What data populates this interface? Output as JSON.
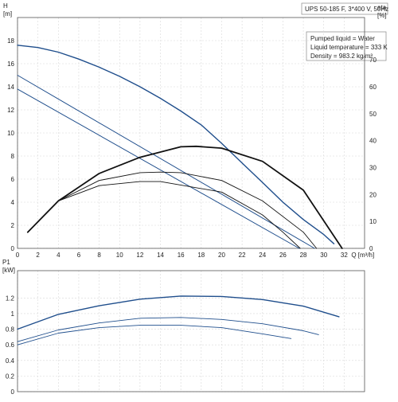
{
  "header": {
    "title": "UPS 50-185 F, 3*400 V, 50Hz",
    "info_lines": [
      "Pumped liquid = Water",
      "Liquid temperature = 333 K",
      "Density = 983.2 kg/m³"
    ]
  },
  "colors": {
    "blue": "#1f4e8c",
    "black": "#111111",
    "grid": "#d8d8d8"
  },
  "chart_data": [
    {
      "type": "line",
      "title": "",
      "xlabel": "Q [m³/h]",
      "ylabel": "H\n[m]",
      "y2label": "eta\n[%]",
      "xlim": [
        0,
        34
      ],
      "ylim": [
        0,
        20
      ],
      "y2lim": [
        0,
        85.7
      ],
      "xticks": [
        0,
        2,
        4,
        6,
        8,
        10,
        12,
        14,
        16,
        18,
        20,
        22,
        24,
        26,
        28,
        30,
        32
      ],
      "yticks": [
        0,
        2,
        4,
        6,
        8,
        10,
        12,
        14,
        16,
        18
      ],
      "y2ticks": [
        0,
        10,
        20,
        30,
        40,
        50,
        60,
        70
      ],
      "grid": true,
      "series": [
        {
          "color": "#1f4e8c",
          "width": 1.4,
          "axis": "y",
          "x": [
            0,
            2,
            4,
            6,
            8,
            10,
            12,
            14,
            16,
            18,
            20,
            22,
            24,
            26,
            28,
            30,
            31
          ],
          "y": [
            17.6,
            17.4,
            17.0,
            16.4,
            15.7,
            14.9,
            14.0,
            13.0,
            11.9,
            10.7,
            9.1,
            7.4,
            5.7,
            4.0,
            2.5,
            1.2,
            0.4
          ]
        },
        {
          "color": "#1f4e8c",
          "width": 1.0,
          "axis": "y",
          "x": [
            0,
            29.1
          ],
          "y": [
            15.0,
            0
          ]
        },
        {
          "color": "#1f4e8c",
          "width": 1.0,
          "axis": "y",
          "x": [
            0,
            27.6
          ],
          "y": [
            13.8,
            0
          ]
        },
        {
          "color": "#111111",
          "width": 1.8,
          "axis": "y2",
          "x": [
            1,
            4,
            8,
            12,
            16,
            17.5,
            20,
            24,
            28,
            31.8
          ],
          "y": [
            6,
            17.6,
            27.8,
            33.8,
            37.7,
            37.9,
            37.2,
            32.3,
            21.6,
            0
          ]
        },
        {
          "color": "#111111",
          "width": 0.9,
          "axis": "y2",
          "x": [
            1,
            4,
            8,
            12,
            14,
            16,
            20,
            24,
            28,
            29.3
          ],
          "y": [
            6,
            17.6,
            25.2,
            28.1,
            28.3,
            28.1,
            25.2,
            17.6,
            6,
            0
          ]
        },
        {
          "color": "#111111",
          "width": 0.9,
          "axis": "y2",
          "x": [
            1,
            4,
            8,
            12,
            14,
            20,
            24,
            26,
            27.7
          ],
          "y": [
            6,
            17.6,
            23.3,
            24.8,
            24.8,
            20.9,
            12.4,
            6,
            0
          ]
        }
      ]
    },
    {
      "type": "line",
      "title": "",
      "xlabel": "",
      "ylabel": "P1\n[kW]",
      "xlim": [
        0,
        34
      ],
      "ylim": [
        0,
        1.55
      ],
      "yticks": [
        0,
        0.2,
        0.4,
        0.6,
        0.8,
        1.0,
        1.2
      ],
      "ytick_labels": [
        "0",
        "0.2",
        "0.4",
        "0.6",
        "0.8",
        "1",
        "1.2"
      ],
      "grid": true,
      "series": [
        {
          "color": "#1f4e8c",
          "width": 1.4,
          "x": [
            0,
            4,
            8,
            12,
            16,
            20,
            24,
            28,
            31.5
          ],
          "y": [
            0.8,
            0.99,
            1.1,
            1.185,
            1.225,
            1.22,
            1.18,
            1.095,
            0.96
          ]
        },
        {
          "color": "#1f4e8c",
          "width": 0.9,
          "x": [
            0,
            4,
            8,
            12,
            16,
            20,
            24,
            28,
            29.5
          ],
          "y": [
            0.64,
            0.79,
            0.88,
            0.94,
            0.95,
            0.925,
            0.87,
            0.78,
            0.73
          ]
        },
        {
          "color": "#1f4e8c",
          "width": 0.9,
          "x": [
            0,
            4,
            8,
            12,
            16,
            20,
            24,
            26.8
          ],
          "y": [
            0.6,
            0.75,
            0.82,
            0.85,
            0.85,
            0.82,
            0.74,
            0.68
          ]
        }
      ]
    }
  ]
}
